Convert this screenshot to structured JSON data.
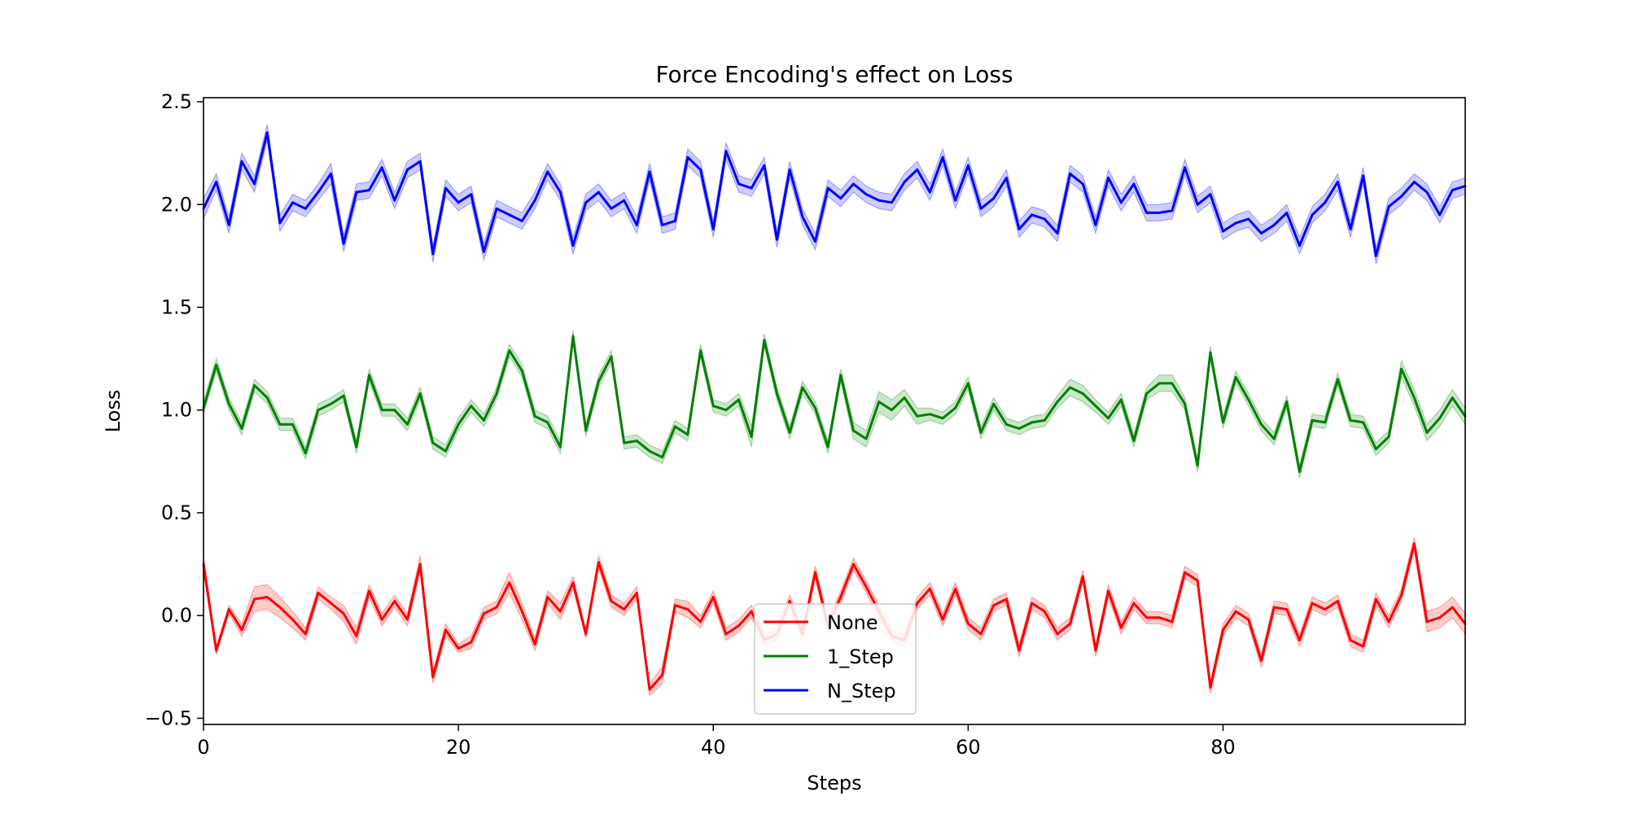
{
  "chart_data": {
    "type": "line",
    "title": "Force Encoding's effect on Loss",
    "xlabel": "Steps",
    "ylabel": "Loss",
    "xlim": [
      0,
      99
    ],
    "ylim": [
      -0.53,
      2.52
    ],
    "xticks": [
      0,
      20,
      40,
      60,
      80
    ],
    "xtick_labels": [
      "0",
      "20",
      "40",
      "60",
      "80"
    ],
    "yticks": [
      -0.5,
      0.0,
      0.5,
      1.0,
      1.5,
      2.0,
      2.5
    ],
    "ytick_labels": [
      "−0.5",
      "0.0",
      "0.5",
      "1.0",
      "1.5",
      "2.0",
      "2.5"
    ],
    "grid": false,
    "legend_position": "lower-center",
    "band_alpha": 0.2,
    "series": [
      {
        "name": "None",
        "color": "#ff0000",
        "values": [
          0.25,
          -0.17,
          0.03,
          -0.07,
          0.08,
          0.09,
          0.04,
          -0.02,
          -0.09,
          0.11,
          0.06,
          0.01,
          -0.1,
          0.12,
          -0.02,
          0.07,
          -0.02,
          0.25,
          -0.3,
          -0.07,
          -0.16,
          -0.13,
          0.01,
          0.04,
          0.16,
          0.02,
          -0.14,
          0.09,
          0.02,
          0.16,
          -0.09,
          0.26,
          0.07,
          0.03,
          0.11,
          -0.36,
          -0.29,
          0.05,
          0.03,
          -0.03,
          0.09,
          -0.09,
          -0.05,
          0.02,
          -0.12,
          -0.09,
          0.07,
          -0.09,
          0.21,
          -0.05,
          0.09,
          0.25,
          0.14,
          0.02,
          -0.1,
          -0.12,
          0.06,
          0.13,
          -0.02,
          0.13,
          -0.04,
          -0.09,
          0.05,
          0.08,
          -0.17,
          0.06,
          0.02,
          -0.09,
          -0.04,
          0.19,
          -0.17,
          0.12,
          -0.06,
          0.06,
          -0.01,
          -0.01,
          -0.03,
          0.21,
          0.17,
          -0.35,
          -0.07,
          0.02,
          -0.02,
          -0.22,
          0.04,
          0.03,
          -0.12,
          0.06,
          0.03,
          0.07,
          -0.12,
          -0.15,
          0.08,
          -0.03,
          0.1,
          0.35,
          -0.03,
          -0.01,
          0.04,
          -0.04
        ],
        "spread": [
          0.04,
          0.02,
          0.02,
          0.03,
          0.06,
          0.06,
          0.05,
          0.04,
          0.03,
          0.03,
          0.03,
          0.04,
          0.04,
          0.03,
          0.03,
          0.03,
          0.03,
          0.04,
          0.03,
          0.03,
          0.02,
          0.03,
          0.03,
          0.03,
          0.05,
          0.04,
          0.03,
          0.03,
          0.04,
          0.03,
          0.02,
          0.03,
          0.03,
          0.03,
          0.03,
          0.03,
          0.04,
          0.03,
          0.04,
          0.03,
          0.03,
          0.03,
          0.03,
          0.03,
          0.03,
          0.03,
          0.03,
          0.03,
          0.03,
          0.03,
          0.03,
          0.03,
          0.03,
          0.03,
          0.03,
          0.03,
          0.03,
          0.03,
          0.03,
          0.03,
          0.03,
          0.03,
          0.03,
          0.03,
          0.03,
          0.03,
          0.03,
          0.03,
          0.03,
          0.03,
          0.03,
          0.03,
          0.03,
          0.03,
          0.03,
          0.03,
          0.03,
          0.03,
          0.03,
          0.03,
          0.03,
          0.03,
          0.03,
          0.03,
          0.03,
          0.03,
          0.03,
          0.03,
          0.03,
          0.03,
          0.03,
          0.03,
          0.03,
          0.03,
          0.03,
          0.03,
          0.05,
          0.05,
          0.05,
          0.05
        ]
      },
      {
        "name": "1_Step",
        "color": "#008000",
        "values": [
          1.01,
          1.22,
          1.03,
          0.91,
          1.12,
          1.06,
          0.93,
          0.93,
          0.79,
          1.0,
          1.03,
          1.07,
          0.82,
          1.17,
          1.0,
          1.0,
          0.93,
          1.08,
          0.84,
          0.8,
          0.93,
          1.02,
          0.95,
          1.08,
          1.29,
          1.19,
          0.97,
          0.94,
          0.82,
          1.36,
          0.9,
          1.14,
          1.26,
          0.84,
          0.85,
          0.8,
          0.77,
          0.92,
          0.88,
          1.29,
          1.02,
          1.0,
          1.05,
          0.87,
          1.34,
          1.08,
          0.89,
          1.11,
          1.01,
          0.82,
          1.17,
          0.9,
          0.86,
          1.04,
          1.0,
          1.06,
          0.97,
          0.98,
          0.96,
          1.01,
          1.13,
          0.89,
          1.03,
          0.93,
          0.91,
          0.94,
          0.95,
          1.04,
          1.11,
          1.08,
          1.02,
          0.96,
          1.05,
          0.85,
          1.08,
          1.13,
          1.13,
          1.03,
          0.73,
          1.28,
          0.94,
          1.16,
          1.05,
          0.93,
          0.86,
          1.04,
          0.7,
          0.95,
          0.94,
          1.15,
          0.95,
          0.94,
          0.81,
          0.87,
          1.2,
          1.06,
          0.89,
          0.96,
          1.06,
          0.97
        ],
        "spread": [
          0.03,
          0.03,
          0.03,
          0.03,
          0.03,
          0.03,
          0.03,
          0.03,
          0.03,
          0.03,
          0.03,
          0.03,
          0.03,
          0.03,
          0.03,
          0.03,
          0.03,
          0.03,
          0.03,
          0.03,
          0.03,
          0.03,
          0.03,
          0.03,
          0.03,
          0.03,
          0.03,
          0.03,
          0.03,
          0.03,
          0.03,
          0.03,
          0.03,
          0.03,
          0.03,
          0.03,
          0.03,
          0.03,
          0.03,
          0.03,
          0.03,
          0.03,
          0.03,
          0.05,
          0.03,
          0.03,
          0.03,
          0.03,
          0.03,
          0.03,
          0.03,
          0.04,
          0.04,
          0.05,
          0.05,
          0.04,
          0.04,
          0.03,
          0.03,
          0.03,
          0.03,
          0.03,
          0.03,
          0.03,
          0.03,
          0.03,
          0.03,
          0.03,
          0.04,
          0.04,
          0.03,
          0.03,
          0.03,
          0.03,
          0.03,
          0.04,
          0.04,
          0.03,
          0.03,
          0.03,
          0.03,
          0.03,
          0.03,
          0.03,
          0.03,
          0.03,
          0.03,
          0.03,
          0.03,
          0.03,
          0.03,
          0.03,
          0.03,
          0.03,
          0.04,
          0.04,
          0.04,
          0.04,
          0.04,
          0.04
        ]
      },
      {
        "name": "N_Step",
        "color": "#0000ff",
        "values": [
          1.98,
          2.11,
          1.9,
          2.21,
          2.1,
          2.35,
          1.91,
          2.01,
          1.98,
          2.06,
          2.15,
          1.81,
          2.06,
          2.07,
          2.18,
          2.02,
          2.17,
          2.21,
          1.76,
          2.08,
          2.01,
          2.05,
          1.77,
          1.98,
          1.95,
          1.92,
          2.02,
          2.16,
          2.06,
          1.8,
          2.01,
          2.06,
          1.98,
          2.02,
          1.9,
          2.16,
          1.9,
          1.92,
          2.23,
          2.17,
          1.88,
          2.26,
          2.1,
          2.08,
          2.19,
          1.83,
          2.17,
          1.94,
          1.82,
          2.08,
          2.03,
          2.1,
          2.05,
          2.02,
          2.01,
          2.11,
          2.17,
          2.06,
          2.23,
          2.02,
          2.19,
          1.98,
          2.03,
          2.13,
          1.88,
          1.95,
          1.93,
          1.86,
          2.15,
          2.1,
          1.9,
          2.13,
          2.01,
          2.1,
          1.96,
          1.96,
          1.97,
          2.18,
          2.0,
          2.05,
          1.87,
          1.91,
          1.93,
          1.86,
          1.9,
          1.96,
          1.8,
          1.95,
          2.01,
          2.11,
          1.88,
          2.14,
          1.75,
          1.99,
          2.04,
          2.11,
          2.06,
          1.95,
          2.07,
          2.09
        ],
        "spread": [
          0.05,
          0.04,
          0.04,
          0.04,
          0.04,
          0.04,
          0.04,
          0.04,
          0.04,
          0.04,
          0.05,
          0.04,
          0.04,
          0.04,
          0.04,
          0.04,
          0.04,
          0.04,
          0.04,
          0.04,
          0.04,
          0.04,
          0.04,
          0.04,
          0.04,
          0.04,
          0.04,
          0.04,
          0.04,
          0.04,
          0.04,
          0.04,
          0.04,
          0.04,
          0.04,
          0.04,
          0.04,
          0.04,
          0.04,
          0.04,
          0.04,
          0.04,
          0.04,
          0.04,
          0.04,
          0.04,
          0.04,
          0.04,
          0.04,
          0.04,
          0.04,
          0.04,
          0.04,
          0.04,
          0.04,
          0.04,
          0.04,
          0.04,
          0.04,
          0.04,
          0.04,
          0.04,
          0.04,
          0.04,
          0.04,
          0.04,
          0.04,
          0.04,
          0.04,
          0.04,
          0.04,
          0.04,
          0.04,
          0.04,
          0.04,
          0.04,
          0.04,
          0.04,
          0.04,
          0.04,
          0.04,
          0.04,
          0.04,
          0.04,
          0.04,
          0.04,
          0.04,
          0.04,
          0.04,
          0.04,
          0.04,
          0.04,
          0.04,
          0.04,
          0.04,
          0.04,
          0.04,
          0.04,
          0.04,
          0.04
        ]
      }
    ]
  }
}
